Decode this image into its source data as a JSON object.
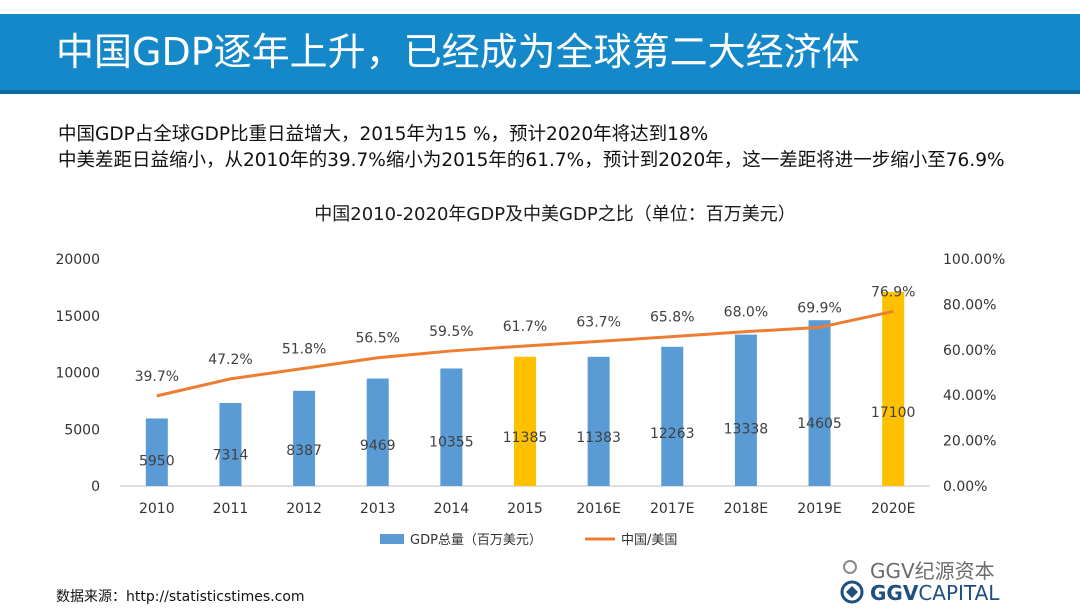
{
  "header": {
    "title": "中国GDP逐年上升，已经成为全球第二大经济体"
  },
  "notes": [
    "中国GDP占全球GDP比重日益增大，2015年为15 %，预计2020年将达到18%",
    "中美差距日益缩小，从2010年的39.7%缩小为2015年的61.7%，预计到2020年，这一差距将进一步缩小至76.9%"
  ],
  "source": "数据来源：http://statisticstimes.com",
  "watermark": {
    "name": "GGV纪源资本",
    "brand_bold": "GGV",
    "brand_rest": "CAPITAL"
  },
  "colors": {
    "banner": "#1588c9",
    "bar": "#5b9bd5",
    "bar_highlight": "#ffc000",
    "line": "#ed7d31"
  },
  "chart_data": {
    "type": "bar",
    "title": "中国2010-2020年GDP及中美GDP之比（单位：百万美元）",
    "categories": [
      "2010",
      "2011",
      "2012",
      "2013",
      "2014",
      "2015",
      "2016E",
      "2017E",
      "2018E",
      "2019E",
      "2020E"
    ],
    "highlight_categories": [
      "2015",
      "2020E"
    ],
    "series": [
      {
        "name": "GDP总量（百万美元）",
        "type": "bar",
        "axis": "left",
        "values": [
          5950,
          7314,
          8387,
          9469,
          10355,
          11385,
          11383,
          12263,
          13338,
          14605,
          17100
        ],
        "labels": [
          "5950",
          "7314",
          "8387",
          "9469",
          "10355",
          "11385",
          "11383",
          "12263",
          "13338",
          "14605",
          "17100"
        ]
      },
      {
        "name": "中国/美国",
        "type": "line",
        "axis": "right",
        "values": [
          39.7,
          47.2,
          51.8,
          56.5,
          59.5,
          61.7,
          63.7,
          65.8,
          68.0,
          69.9,
          76.9
        ],
        "labels": [
          "39.7%",
          "47.2%",
          "51.8%",
          "56.5%",
          "59.5%",
          "61.7%",
          "63.7%",
          "65.8%",
          "68.0%",
          "69.9%",
          "76.9%"
        ]
      }
    ],
    "y_left": {
      "min": 0,
      "max": 20000,
      "ticks": [
        0,
        5000,
        10000,
        15000,
        20000
      ],
      "tick_labels": [
        "0",
        "5000",
        "10000",
        "15000",
        "20000"
      ]
    },
    "y_right": {
      "min": 0,
      "max": 100,
      "ticks": [
        0,
        20,
        40,
        60,
        80,
        100
      ],
      "tick_labels": [
        "0.00%",
        "20.00%",
        "40.00%",
        "60.00%",
        "80.00%",
        "100.00%"
      ]
    },
    "legend_position": "bottom",
    "grid": false
  }
}
